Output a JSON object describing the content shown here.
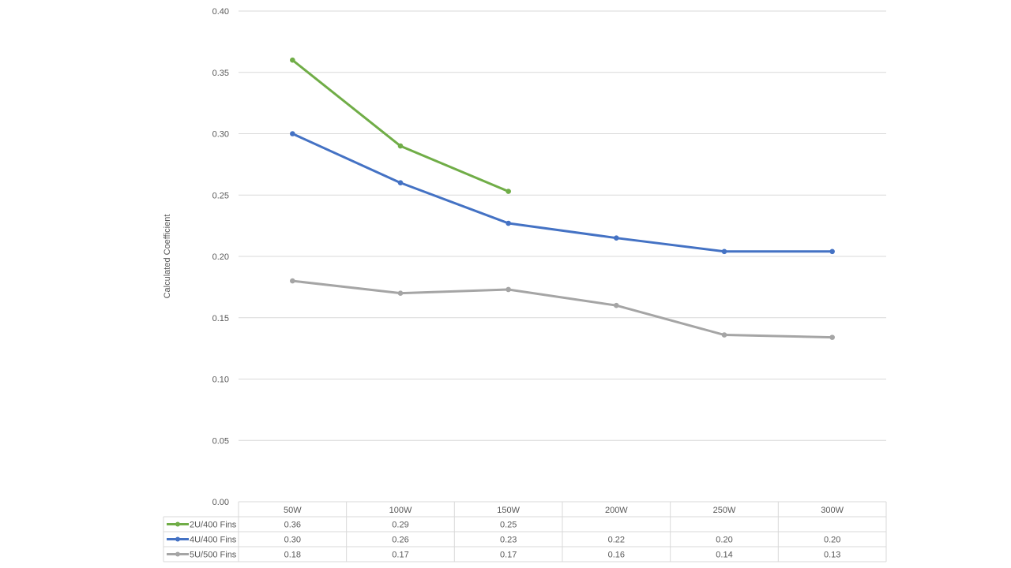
{
  "chart_data": {
    "type": "line",
    "title": "",
    "xlabel": "",
    "ylabel": "Calculated Coefficient",
    "categories": [
      "50W",
      "100W",
      "150W",
      "200W",
      "250W",
      "300W"
    ],
    "ylim": [
      0,
      0.4
    ],
    "yticks": [
      "0.00",
      "0.05",
      "0.10",
      "0.15",
      "0.20",
      "0.25",
      "0.30",
      "0.35",
      "0.40"
    ],
    "grid": true,
    "legend_placement": "data-table",
    "series": [
      {
        "name": "2U/400 Fins",
        "color": "#70AD47",
        "values": [
          0.36,
          0.29,
          0.253,
          null,
          null,
          null
        ],
        "table_labels": [
          "0.36",
          "0.29",
          "0.25",
          "",
          "",
          ""
        ]
      },
      {
        "name": "4U/400 Fins",
        "color": "#4472C4",
        "values": [
          0.3,
          0.26,
          0.227,
          0.215,
          0.204,
          0.204
        ],
        "table_labels": [
          "0.30",
          "0.26",
          "0.23",
          "0.22",
          "0.20",
          "0.20"
        ]
      },
      {
        "name": "5U/500 Fins",
        "color": "#A5A5A5",
        "values": [
          0.18,
          0.17,
          0.173,
          0.16,
          0.136,
          0.134
        ],
        "table_labels": [
          "0.18",
          "0.17",
          "0.17",
          "0.16",
          "0.14",
          "0.13"
        ]
      }
    ]
  }
}
